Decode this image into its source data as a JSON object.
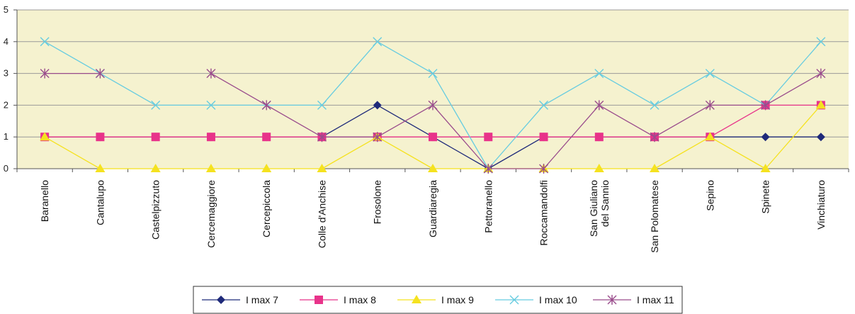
{
  "chart_data": {
    "type": "line",
    "categories": [
      "Baranello",
      "Cantalupo",
      "Castelpizzuto",
      "Cercemaggiore",
      "Cercepiccola",
      "Colle d'Anchise",
      "Frosolone",
      "Guardiaregia",
      "Pettoranello",
      "Roccamandolfi",
      "San Giuliano del Sannio",
      "San Polomatese",
      "Sepino",
      "Spinete",
      "Vinchiaturo"
    ],
    "ylim": [
      0,
      5
    ],
    "yticks": [
      0,
      1,
      2,
      3,
      4,
      5
    ],
    "grid": true,
    "legend_position": "bottom",
    "plot_background": "#F5F2CF",
    "series": [
      {
        "name": "I max 7",
        "color": "#1F2A7A",
        "marker": "diamond",
        "values": [
          1,
          1,
          1,
          1,
          1,
          1,
          2,
          1,
          0,
          1,
          1,
          1,
          1,
          1,
          1
        ]
      },
      {
        "name": "I max 8",
        "color": "#E8338A",
        "marker": "square",
        "values": [
          1,
          1,
          1,
          1,
          1,
          1,
          1,
          1,
          1,
          1,
          1,
          1,
          1,
          2,
          2
        ]
      },
      {
        "name": "I max 9",
        "color": "#F5E21F",
        "marker": "triangle",
        "values": [
          1,
          0,
          0,
          0,
          0,
          0,
          1,
          0,
          0,
          0,
          0,
          0,
          1,
          0,
          2
        ]
      },
      {
        "name": "I max 10",
        "color": "#66CCE0",
        "marker": "x",
        "values": [
          4,
          3,
          2,
          2,
          2,
          2,
          4,
          3,
          0,
          2,
          3,
          2,
          3,
          2,
          4
        ]
      },
      {
        "name": "I max 11",
        "color": "#9A4C8C",
        "marker": "asterisk",
        "values": [
          3,
          3,
          null,
          3,
          2,
          1,
          1,
          2,
          0,
          0,
          2,
          1,
          2,
          2,
          3
        ]
      }
    ]
  }
}
